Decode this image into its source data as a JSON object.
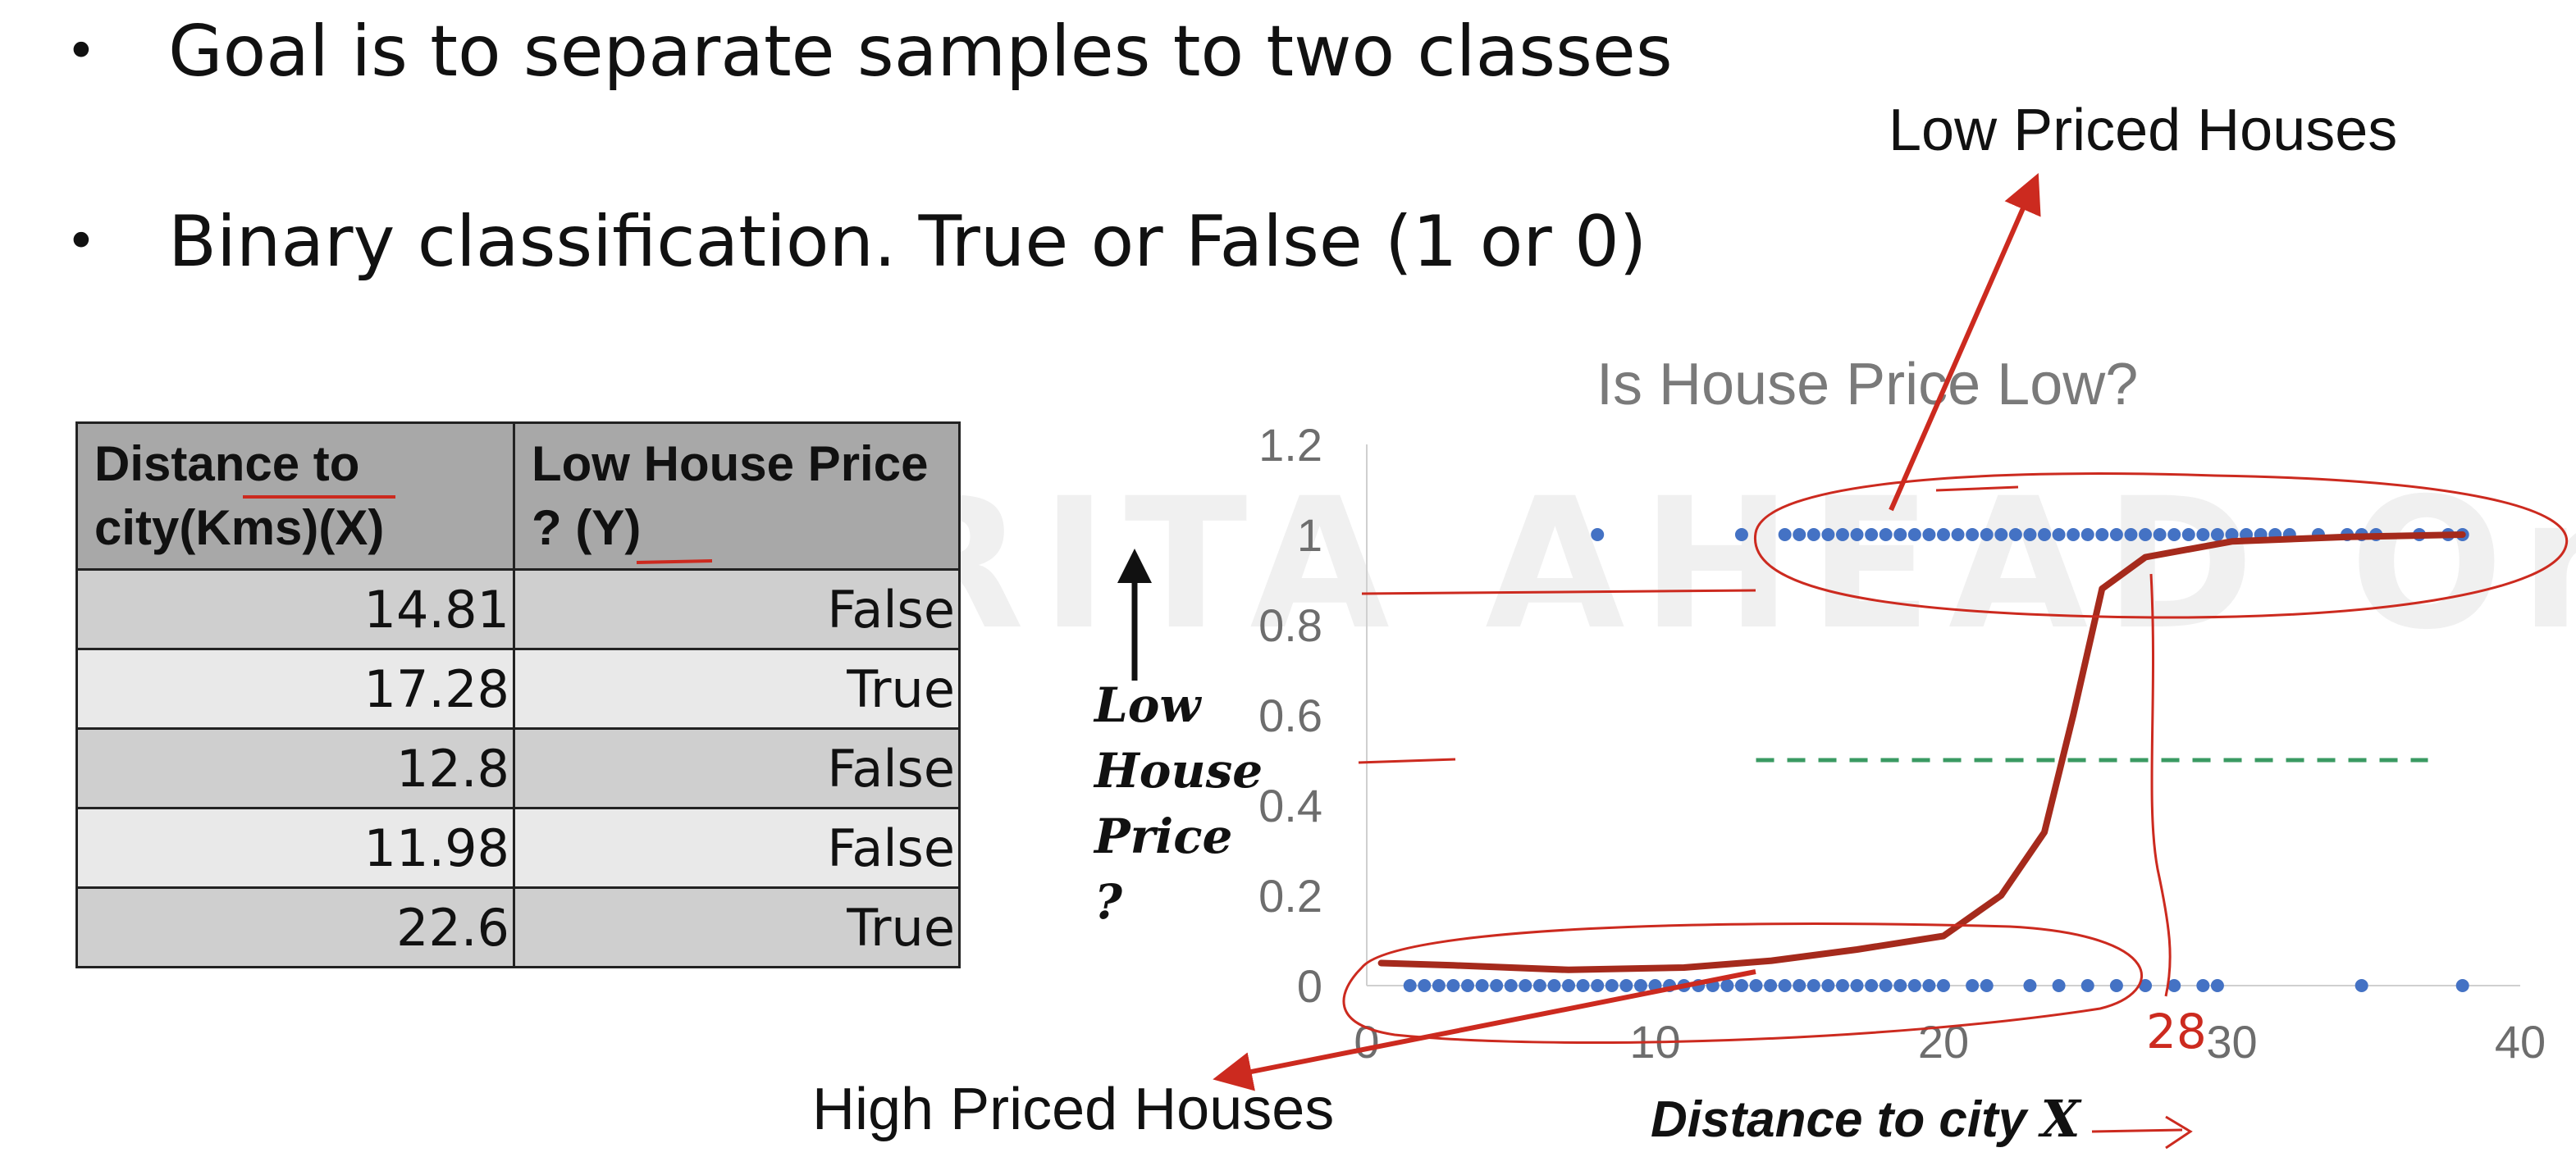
{
  "bullets": [
    {
      "marker": "•",
      "text": "Goal is to separate samples to two classes"
    },
    {
      "marker": "•",
      "text": "Binary classification. True or False (1 or 0)"
    }
  ],
  "table": {
    "headers": [
      "Distance to city(Kms)(X)",
      "Low House Price ? (Y)"
    ],
    "rows": [
      [
        "14.81",
        "False"
      ],
      [
        "17.28",
        "True"
      ],
      [
        "12.8",
        "False"
      ],
      [
        "11.98",
        "False"
      ],
      [
        "22.6",
        "True"
      ]
    ]
  },
  "watermark": "AMRITA AHEAD Online",
  "annotations": {
    "low": "Low Priced Houses",
    "high": "High Priced Houses",
    "handwritten_value": "28"
  },
  "axis_labels": {
    "y": [
      "Low",
      "House",
      "Price",
      "?"
    ],
    "x_text": "Distance to city",
    "x_var": "X"
  },
  "colors": {
    "points": "#4472c4",
    "annotation": "#cc2a1f",
    "threshold": "#3a9a62",
    "sigmoid": "#a52a1c"
  },
  "chart_data": {
    "type": "scatter",
    "title": "Is House Price Low?",
    "xlabel": "Distance to city X",
    "ylabel": "Low House Price ?",
    "xlim": [
      0,
      40
    ],
    "ylim": [
      0,
      1.2
    ],
    "x_ticks": [
      0,
      10,
      20,
      30,
      40
    ],
    "y_ticks": [
      0,
      0.2,
      0.4,
      0.6,
      0.8,
      1,
      1.2
    ],
    "x_tick_labels": [
      "0",
      "10",
      "20",
      "30",
      "40"
    ],
    "y_tick_labels": [
      "0",
      "0.2",
      "0.4",
      "0.6",
      "0.8",
      "1",
      "1.2"
    ],
    "grid": false,
    "series": [
      {
        "x": [
          8,
          13,
          14.5,
          15,
          15.5,
          16,
          16.5,
          17,
          17.5,
          18,
          18.5,
          19,
          19.5,
          20,
          20.5,
          21,
          21.5,
          22,
          22.5,
          23,
          23.5,
          24,
          24.5,
          25,
          25.5,
          26,
          26.5,
          27,
          27.5,
          28,
          28.5,
          29,
          29.5,
          30,
          30.5,
          31,
          31.5,
          32,
          33,
          34,
          34.5,
          35,
          36.5,
          37.5,
          38
        ],
        "y": [
          1,
          1,
          1,
          1,
          1,
          1,
          1,
          1,
          1,
          1,
          1,
          1,
          1,
          1,
          1,
          1,
          1,
          1,
          1,
          1,
          1,
          1,
          1,
          1,
          1,
          1,
          1,
          1,
          1,
          1,
          1,
          1,
          1,
          1,
          1,
          1,
          1,
          1,
          1,
          1,
          1,
          1,
          1,
          1,
          1
        ]
      },
      {
        "x": [
          1.5,
          2,
          2.5,
          3,
          3.5,
          4,
          4.5,
          5,
          5.5,
          6,
          6.5,
          7,
          7.5,
          8,
          8.5,
          9,
          9.5,
          10,
          10.5,
          11,
          11.5,
          12,
          12.5,
          13,
          13.5,
          14,
          14.5,
          15,
          15.5,
          16,
          16.5,
          17,
          17.5,
          18,
          18.5,
          19,
          19.5,
          20,
          21,
          21.5,
          23,
          24,
          25,
          26,
          27,
          28,
          29,
          29.5,
          34.5,
          38
        ],
        "y": [
          0,
          0,
          0,
          0,
          0,
          0,
          0,
          0,
          0,
          0,
          0,
          0,
          0,
          0,
          0,
          0,
          0,
          0,
          0,
          0,
          0,
          0,
          0,
          0,
          0,
          0,
          0,
          0,
          0,
          0,
          0,
          0,
          0,
          0,
          0,
          0,
          0,
          0,
          0,
          0,
          0,
          0,
          0,
          0,
          0,
          0,
          0,
          0,
          0,
          0
        ]
      }
    ]
  }
}
